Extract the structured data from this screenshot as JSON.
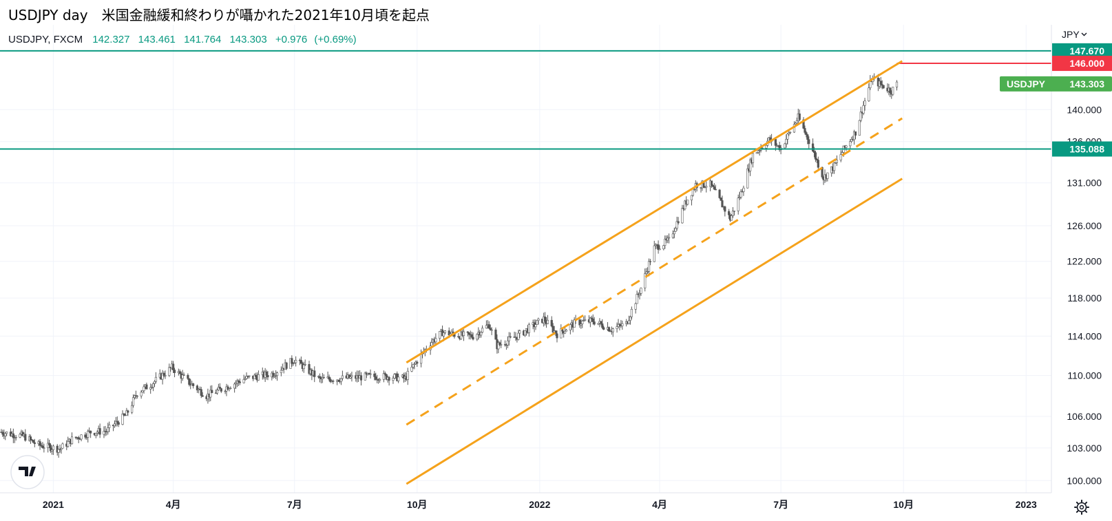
{
  "page_title": "USDJPY day　米国金融緩和終わりが囁かれた2021年10月頃を起点",
  "legend": {
    "symbol": "USDJPY, FXCM",
    "open": "142.327",
    "high": "143.461",
    "low": "141.764",
    "close": "143.303",
    "change": "+0.976",
    "change_pct": "(+0.69%)"
  },
  "currency": "JPY",
  "currency_icon": "chevron-down-icon",
  "settings_icon": "gear-icon",
  "logo_text": "TV",
  "colors": {
    "candles": "#555555",
    "horizontal_line": "#089981",
    "resistance_line": "#f23645",
    "channel": "#f5a21b",
    "price_tag": "#4caf50"
  },
  "chart_data": {
    "type": "candlestick",
    "symbol": "USDJPY",
    "timeframe": "day",
    "x_range": [
      "2020-11-22",
      "2023-01-20"
    ],
    "y_range": [
      98.9,
      151.2
    ],
    "y_scale": "log",
    "y_ticks": [
      "100.000",
      "103.000",
      "106.000",
      "110.000",
      "114.000",
      "118.000",
      "122.000",
      "126.000",
      "131.000",
      "136.000",
      "140.000"
    ],
    "x_ticks": [
      "2021",
      "4月",
      "7月",
      "10月",
      "2022",
      "4月",
      "7月",
      "10月",
      "2023"
    ],
    "close_path": [
      [
        "2020-11-23",
        104.5
      ],
      [
        "2020-12-01",
        104.3
      ],
      [
        "2020-12-10",
        104.1
      ],
      [
        "2020-12-20",
        103.3
      ],
      [
        "2021-01-06",
        102.9
      ],
      [
        "2021-01-15",
        103.8
      ],
      [
        "2021-01-29",
        104.5
      ],
      [
        "2021-02-10",
        104.6
      ],
      [
        "2021-02-25",
        106.2
      ],
      [
        "2021-03-05",
        108.3
      ],
      [
        "2021-03-15",
        109.1
      ],
      [
        "2021-03-31",
        110.8
      ],
      [
        "2021-04-12",
        109.4
      ],
      [
        "2021-04-26",
        108.0
      ],
      [
        "2021-05-10",
        108.8
      ],
      [
        "2021-05-25",
        109.7
      ],
      [
        "2021-06-15",
        110.2
      ],
      [
        "2021-07-01",
        111.6
      ],
      [
        "2021-07-20",
        109.6
      ],
      [
        "2021-08-05",
        109.7
      ],
      [
        "2021-08-25",
        109.9
      ],
      [
        "2021-09-10",
        109.9
      ],
      [
        "2021-09-22",
        109.7
      ],
      [
        "2021-10-01",
        111.5
      ],
      [
        "2021-10-11",
        113.3
      ],
      [
        "2021-10-20",
        114.4
      ],
      [
        "2021-11-01",
        114.1
      ],
      [
        "2021-11-12",
        114.0
      ],
      [
        "2021-11-24",
        115.2
      ],
      [
        "2021-11-30",
        113.0
      ],
      [
        "2021-12-15",
        114.0
      ],
      [
        "2022-01-04",
        115.8
      ],
      [
        "2022-01-14",
        114.2
      ],
      [
        "2022-01-28",
        115.4
      ],
      [
        "2022-02-10",
        115.6
      ],
      [
        "2022-02-24",
        114.7
      ],
      [
        "2022-03-07",
        115.3
      ],
      [
        "2022-03-18",
        119.1
      ],
      [
        "2022-03-28",
        123.5
      ],
      [
        "2022-04-08",
        124.3
      ],
      [
        "2022-04-20",
        128.5
      ],
      [
        "2022-04-28",
        130.8
      ],
      [
        "2022-05-09",
        130.8
      ],
      [
        "2022-05-18",
        128.4
      ],
      [
        "2022-05-24",
        126.8
      ],
      [
        "2022-06-01",
        129.8
      ],
      [
        "2022-06-10",
        134.4
      ],
      [
        "2022-06-22",
        136.2
      ],
      [
        "2022-07-01",
        135.2
      ],
      [
        "2022-07-14",
        139.0
      ],
      [
        "2022-07-22",
        136.1
      ],
      [
        "2022-08-02",
        131.6
      ],
      [
        "2022-08-10",
        133.0
      ],
      [
        "2022-08-17",
        135.0
      ],
      [
        "2022-08-26",
        137.2
      ],
      [
        "2022-09-07",
        143.9
      ],
      [
        "2022-09-14",
        143.2
      ],
      [
        "2022-09-22",
        142.4
      ],
      [
        "2022-09-26",
        143.3
      ]
    ],
    "horizontal_lines": [
      {
        "price": 147.67,
        "label": "147.670"
      },
      {
        "price": 135.088,
        "label": "135.088"
      }
    ],
    "resistance": {
      "price": 146.0,
      "label": "146.000",
      "from": "2022-09-26"
    },
    "last_price": {
      "label": "USDJPY",
      "value": "143.303",
      "price": 143.303
    },
    "channel": {
      "start_date": "2021-09-23",
      "end_date": "2022-09-30",
      "upper": [
        111.3,
        146.3
      ],
      "middle": [
        105.2,
        138.9
      ],
      "lower": [
        99.7,
        131.5
      ]
    }
  }
}
